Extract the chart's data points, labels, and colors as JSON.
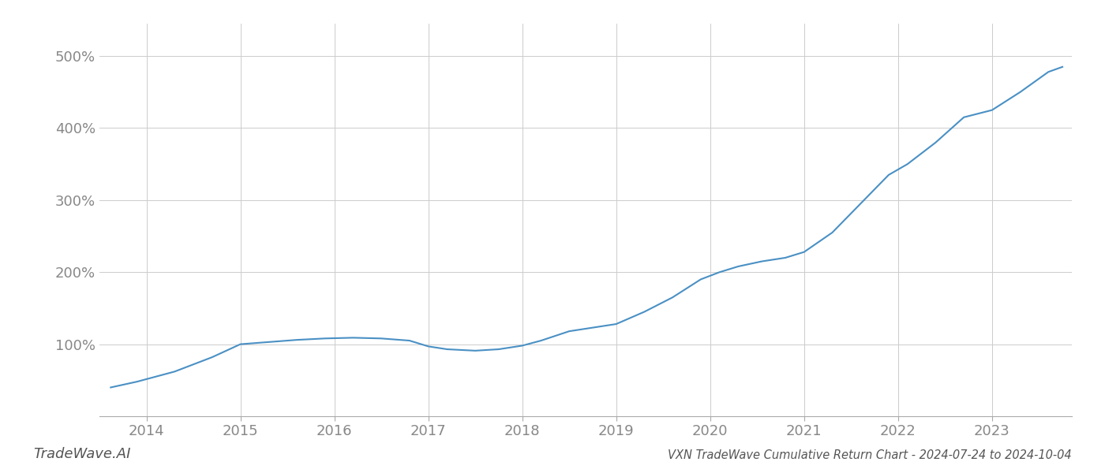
{
  "title": "VXN TradeWave Cumulative Return Chart - 2024-07-24 to 2024-10-04",
  "watermark": "TradeWave.AI",
  "line_color": "#4a90c4",
  "background_color": "#ffffff",
  "grid_color": "#cccccc",
  "x_values": [
    2013.62,
    2013.9,
    2014.3,
    2014.7,
    2015.0,
    2015.3,
    2015.6,
    2015.9,
    2016.2,
    2016.5,
    2016.8,
    2017.0,
    2017.2,
    2017.5,
    2017.75,
    2018.0,
    2018.2,
    2018.5,
    2018.75,
    2019.0,
    2019.3,
    2019.6,
    2019.9,
    2020.1,
    2020.3,
    2020.55,
    2020.8,
    2021.0,
    2021.3,
    2021.6,
    2021.9,
    2022.1,
    2022.4,
    2022.7,
    2023.0,
    2023.3,
    2023.6,
    2023.75
  ],
  "y_values": [
    40,
    48,
    62,
    82,
    100,
    103,
    106,
    108,
    109,
    108,
    105,
    97,
    93,
    91,
    93,
    98,
    105,
    118,
    123,
    128,
    145,
    165,
    190,
    200,
    208,
    215,
    220,
    228,
    255,
    295,
    335,
    350,
    380,
    415,
    425,
    450,
    478,
    485
  ],
  "xlim": [
    2013.5,
    2023.85
  ],
  "ylim": [
    0,
    545
  ],
  "xticks": [
    2014,
    2015,
    2016,
    2017,
    2018,
    2019,
    2020,
    2021,
    2022,
    2023
  ],
  "yticks": [
    100,
    200,
    300,
    400,
    500
  ],
  "line_width": 1.5,
  "title_fontsize": 10.5,
  "tick_fontsize": 13,
  "watermark_fontsize": 13,
  "tick_color": "#888888",
  "spine_color": "#aaaaaa"
}
